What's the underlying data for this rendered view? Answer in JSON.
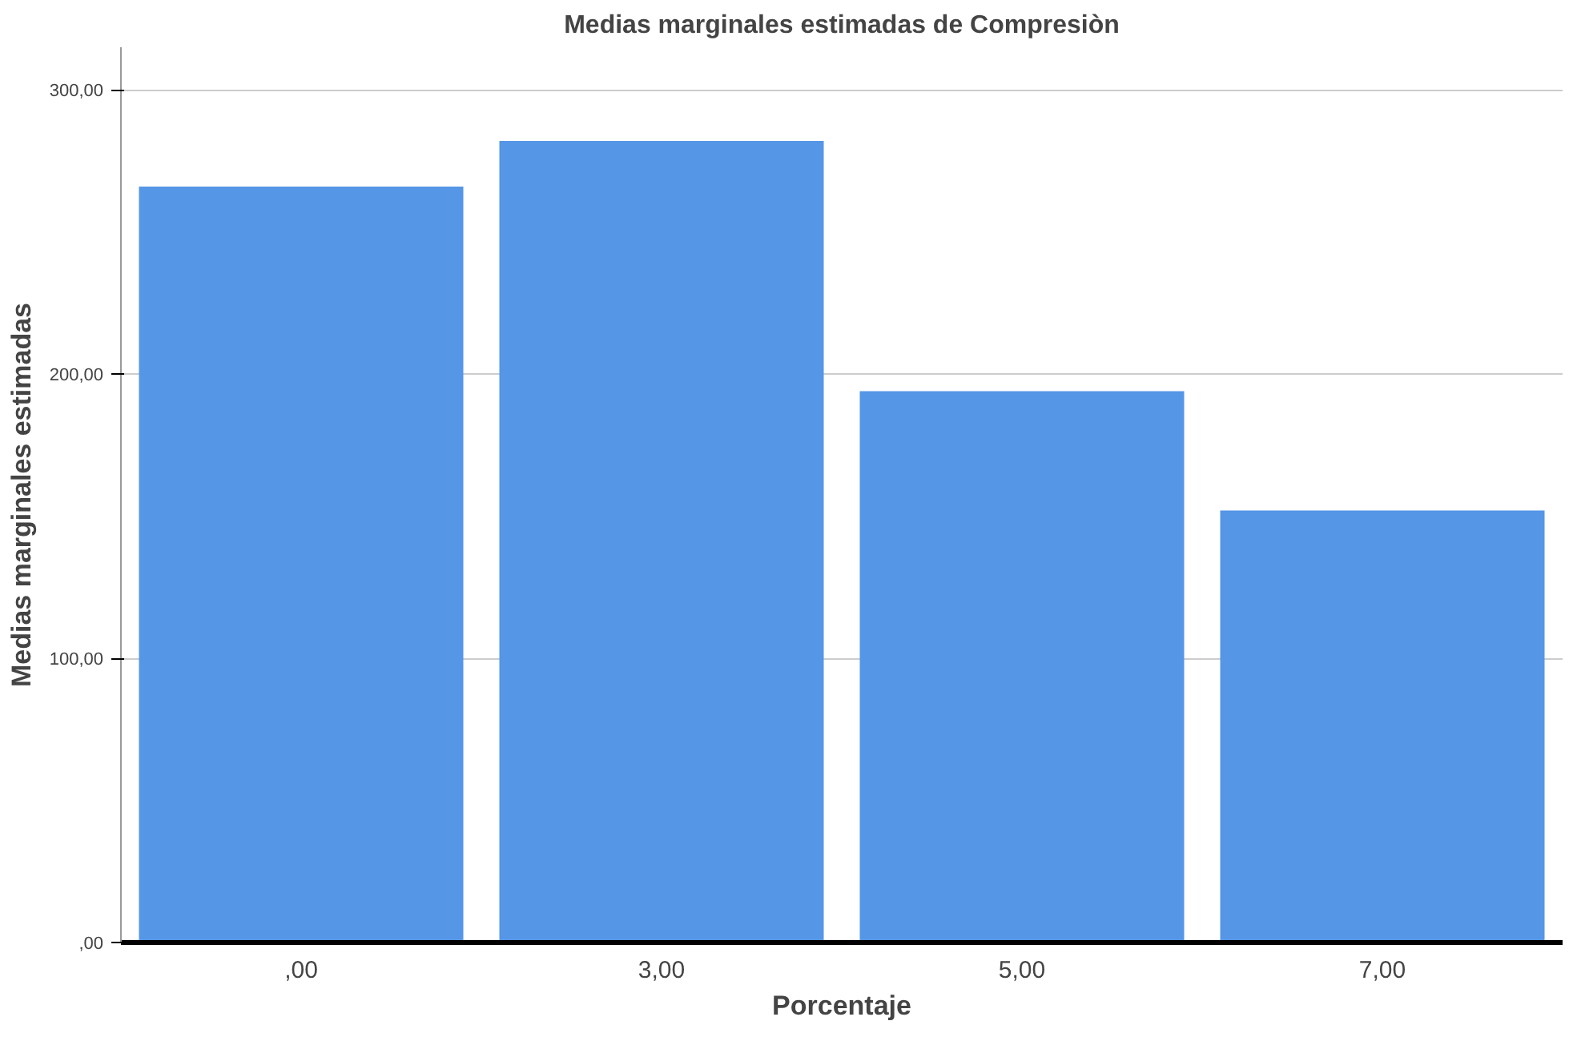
{
  "chart_data": {
    "type": "bar",
    "title": "Medias marginales estimadas de Compresiòn",
    "xlabel": "Porcentaje",
    "ylabel": "Medias marginales estimadas",
    "categories": [
      ",00",
      "3,00",
      "5,00",
      "7,00"
    ],
    "values": [
      266,
      282,
      194,
      152
    ],
    "color": "#5596e6",
    "ylim": [
      0,
      315
    ],
    "yticks": [
      {
        "value": 0,
        "label": ",00"
      },
      {
        "value": 100,
        "label": "100,00"
      },
      {
        "value": 200,
        "label": "200,00"
      },
      {
        "value": 300,
        "label": "300,00"
      }
    ],
    "grid": "y"
  }
}
